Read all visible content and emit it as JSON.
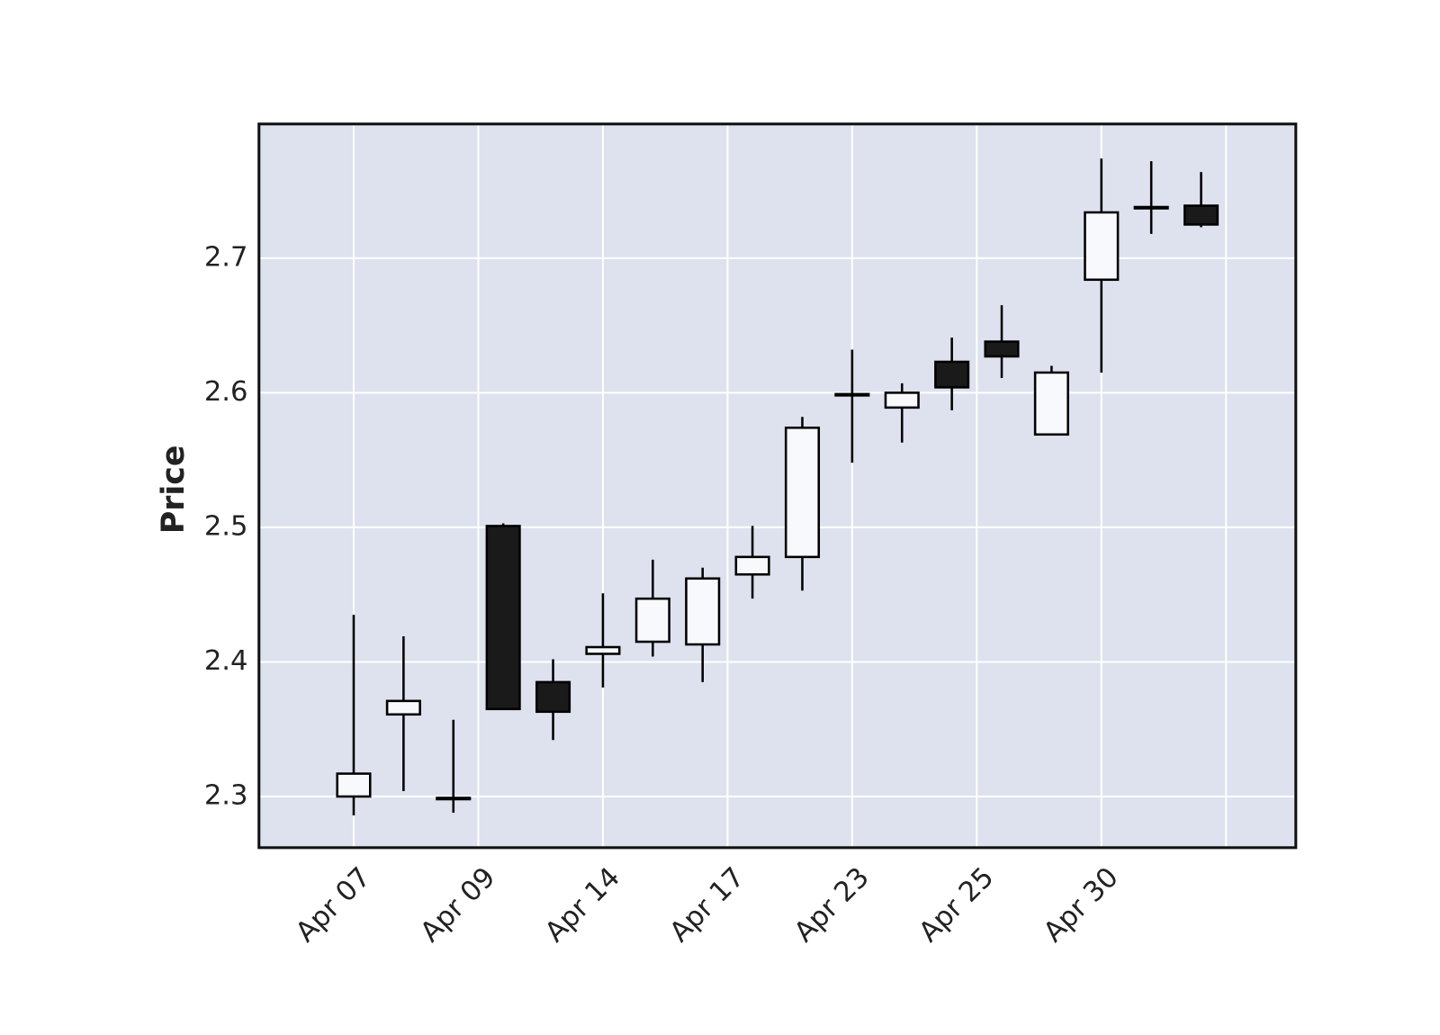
{
  "chart_data": {
    "type": "candlestick",
    "y_label": "Price",
    "x": [
      0,
      1,
      2,
      3,
      4,
      5,
      6,
      7,
      8,
      9,
      10,
      11,
      12,
      13,
      14,
      15,
      16,
      17
    ],
    "open": [
      2.3,
      2.361,
      2.299,
      2.501,
      2.385,
      2.406,
      2.415,
      2.413,
      2.465,
      2.478,
      2.598,
      2.589,
      2.623,
      2.638,
      2.569,
      2.684,
      2.737,
      2.739
    ],
    "high": [
      2.435,
      2.419,
      2.357,
      2.503,
      2.402,
      2.451,
      2.476,
      2.47,
      2.501,
      2.582,
      2.632,
      2.607,
      2.641,
      2.665,
      2.62,
      2.774,
      2.772,
      2.764
    ],
    "low": [
      2.286,
      2.304,
      2.288,
      2.365,
      2.342,
      2.381,
      2.404,
      2.385,
      2.447,
      2.453,
      2.548,
      2.563,
      2.587,
      2.611,
      2.569,
      2.615,
      2.718,
      2.723
    ],
    "close": [
      2.317,
      2.371,
      2.298,
      2.365,
      2.363,
      2.411,
      2.447,
      2.462,
      2.478,
      2.574,
      2.599,
      2.6,
      2.604,
      2.627,
      2.615,
      2.734,
      2.738,
      2.725
    ],
    "up_color": "#f8f9fc",
    "down_color": "#1a1a1a",
    "edge_color": "#000000",
    "background": "#dde2ee",
    "grid": true,
    "xlim": [
      -1.9,
      18.9
    ],
    "xticks": [
      {
        "value": 0,
        "label": "Apr 07"
      },
      {
        "value": 2.5,
        "label": "Apr 09"
      },
      {
        "value": 5,
        "label": "Apr 14"
      },
      {
        "value": 7.5,
        "label": "Apr 17"
      },
      {
        "value": 10,
        "label": "Apr 23"
      },
      {
        "value": 12.5,
        "label": "Apr 25"
      },
      {
        "value": 15,
        "label": "Apr 30"
      },
      {
        "value": 17.5,
        "label": null
      }
    ],
    "ylim": [
      2.262,
      2.7997
    ],
    "yticks": [
      2.3,
      2.4,
      2.5,
      2.6,
      2.7
    ]
  }
}
